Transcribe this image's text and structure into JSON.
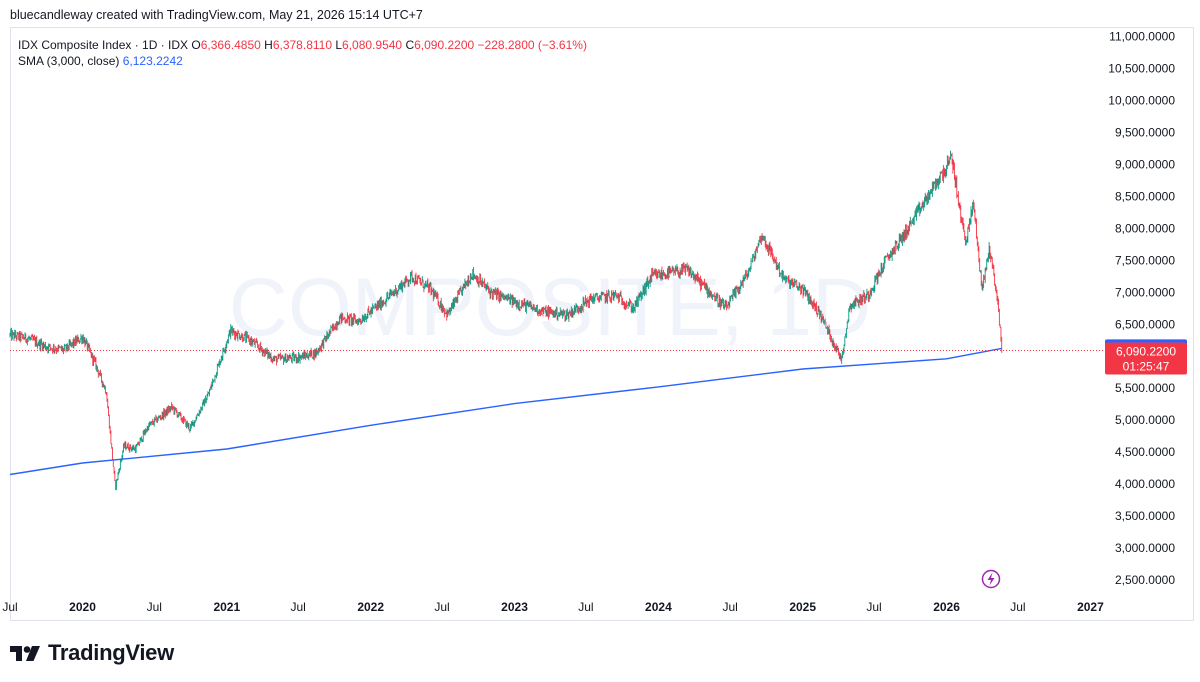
{
  "header": {
    "attribution": "bluecandleway created with TradingView.com, May 21, 2026 15:14 UTC+7"
  },
  "legend": {
    "symbol": "IDX Composite Index · 1D · IDX",
    "o_label": "O",
    "o_value": "6,366.4850",
    "h_label": "H",
    "h_value": "6,378.8110",
    "l_label": "L",
    "l_value": "6,080.9540",
    "c_label": "C",
    "c_value": "6,090.2200",
    "change": "−228.2800 (−3.61%)",
    "indicator_label": "SMA (3,000, close)",
    "indicator_value": "6,123.2242"
  },
  "watermark": "COMPOSITE, 1D",
  "price_tags": {
    "sma": "6,123.2242",
    "last": "6,090.2200",
    "countdown": "01:25:47"
  },
  "footer": {
    "brand": "TradingView"
  },
  "colors": {
    "up": "#089981",
    "down": "#f23645",
    "sma": "#2962ff",
    "axis_text": "#131722",
    "watermark": "#f0f3fa",
    "grid": "#e0e3eb",
    "alert": "#9c27b0"
  },
  "chart_data": {
    "type": "candlestick",
    "title": "IDX Composite Index · 1D · IDX",
    "y_axis": {
      "ticks": [
        "2,500.0000",
        "3,000.0000",
        "3,500.0000",
        "4,000.0000",
        "4,500.0000",
        "5,000.0000",
        "5,500.0000",
        "6,000.0000",
        "6,500.0000",
        "7,000.0000",
        "7,500.0000",
        "8,000.0000",
        "8,500.0000",
        "9,000.0000",
        "9,500.0000",
        "10,000.0000",
        "10,500.0000",
        "11,000.0000"
      ],
      "tick_values": [
        2500,
        3000,
        3500,
        4000,
        4500,
        5000,
        5500,
        6000,
        6500,
        7000,
        7500,
        8000,
        8500,
        9000,
        9500,
        10000,
        10500,
        11000
      ],
      "range": [
        2250,
        11150
      ]
    },
    "x_axis": {
      "ticks": [
        "Jul",
        "2020",
        "Jul",
        "2021",
        "Jul",
        "2022",
        "Jul",
        "2023",
        "Jul",
        "2024",
        "Jul",
        "2025",
        "Jul",
        "2026",
        "Jul",
        "2027"
      ],
      "tick_dates": [
        "2019-07-01",
        "2020-01-01",
        "2020-07-01",
        "2021-01-01",
        "2021-07-01",
        "2022-01-01",
        "2022-07-01",
        "2023-01-01",
        "2023-07-01",
        "2024-01-01",
        "2024-07-01",
        "2025-01-01",
        "2025-07-01",
        "2026-01-01",
        "2026-07-01",
        "2027-01-01"
      ],
      "bold": [
        false,
        true,
        false,
        true,
        false,
        true,
        false,
        true,
        false,
        true,
        false,
        true,
        false,
        true,
        false,
        true
      ],
      "range": [
        "2019-07-01",
        "2027-02-07"
      ]
    },
    "price_path": [
      [
        "2019-07-01",
        6330
      ],
      [
        "2019-08-15",
        6280
      ],
      [
        "2019-10-01",
        6150
      ],
      [
        "2019-11-15",
        6100
      ],
      [
        "2020-01-01",
        6300
      ],
      [
        "2020-02-01",
        5900
      ],
      [
        "2020-03-01",
        5450
      ],
      [
        "2020-03-24",
        3950
      ],
      [
        "2020-04-15",
        4600
      ],
      [
        "2020-05-15",
        4550
      ],
      [
        "2020-06-15",
        4900
      ],
      [
        "2020-08-15",
        5200
      ],
      [
        "2020-09-30",
        4870
      ],
      [
        "2020-11-15",
        5400
      ],
      [
        "2021-01-10",
        6400
      ],
      [
        "2021-03-01",
        6250
      ],
      [
        "2021-05-01",
        5950
      ],
      [
        "2021-06-30",
        5980
      ],
      [
        "2021-08-15",
        6050
      ],
      [
        "2021-10-15",
        6600
      ],
      [
        "2021-12-01",
        6550
      ],
      [
        "2022-02-01",
        6850
      ],
      [
        "2022-04-15",
        7250
      ],
      [
        "2022-06-01",
        7050
      ],
      [
        "2022-07-15",
        6650
      ],
      [
        "2022-09-15",
        7300
      ],
      [
        "2022-11-01",
        7000
      ],
      [
        "2023-01-01",
        6850
      ],
      [
        "2023-03-15",
        6700
      ],
      [
        "2023-05-15",
        6650
      ],
      [
        "2023-07-15",
        6900
      ],
      [
        "2023-09-15",
        6950
      ],
      [
        "2023-10-30",
        6750
      ],
      [
        "2023-12-15",
        7250
      ],
      [
        "2024-03-15",
        7350
      ],
      [
        "2024-06-20",
        6750
      ],
      [
        "2024-08-15",
        7300
      ],
      [
        "2024-09-19",
        7900
      ],
      [
        "2024-11-15",
        7200
      ],
      [
        "2024-12-31",
        7050
      ],
      [
        "2025-02-15",
        6650
      ],
      [
        "2025-04-09",
        5950
      ],
      [
        "2025-05-01",
        6800
      ],
      [
        "2025-06-15",
        6950
      ],
      [
        "2025-07-31",
        7500
      ],
      [
        "2025-09-15",
        7900
      ],
      [
        "2025-11-15",
        8500
      ],
      [
        "2026-01-15",
        9100
      ],
      [
        "2026-02-05",
        8200
      ],
      [
        "2026-02-20",
        7800
      ],
      [
        "2026-03-10",
        8400
      ],
      [
        "2026-04-01",
        7050
      ],
      [
        "2026-04-20",
        7700
      ],
      [
        "2026-05-10",
        6900
      ],
      [
        "2026-05-21",
        6090
      ]
    ],
    "sma_path": [
      [
        "2019-07-01",
        4150
      ],
      [
        "2020-01-01",
        4330
      ],
      [
        "2021-01-01",
        4550
      ],
      [
        "2022-01-01",
        4920
      ],
      [
        "2023-01-01",
        5260
      ],
      [
        "2024-01-01",
        5520
      ],
      [
        "2025-01-01",
        5800
      ],
      [
        "2026-01-01",
        5960
      ],
      [
        "2026-05-21",
        6123.2242
      ]
    ],
    "last_close": 6090.22,
    "sma_last": 6123.2242
  }
}
